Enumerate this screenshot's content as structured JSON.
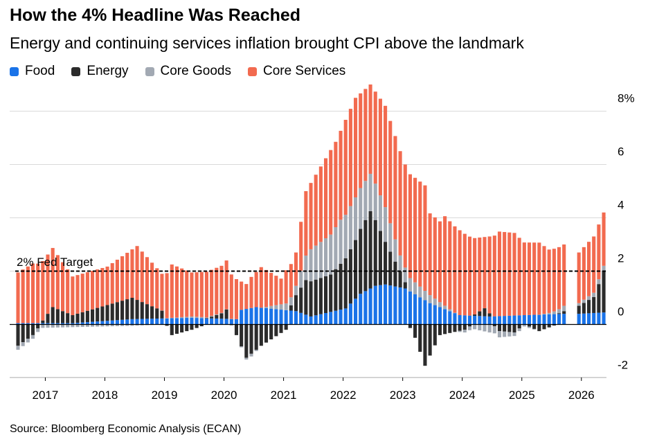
{
  "title": "How the 4% Headline Was Reached",
  "subtitle": "Energy and continuing services inflation brought CPI above the landmark",
  "source": "Source: Bloomberg Economic Analysis (ECAN)",
  "legend": [
    {
      "name": "Food",
      "color": "#1a73e8"
    },
    {
      "name": "Energy",
      "color": "#2b2b2b"
    },
    {
      "name": "Core Goods",
      "color": "#a2a9b3"
    },
    {
      "name": "Core Services",
      "color": "#f26a4f"
    }
  ],
  "chart_data": {
    "type": "bar",
    "stacked": true,
    "title": "How the 4% Headline Was Reached",
    "subtitle": "Energy and continuing services inflation brought CPI above the landmark",
    "ylim": [
      -2,
      8
    ],
    "y_ticks": [
      -2,
      0,
      2,
      4,
      6,
      8
    ],
    "y_tick_labels": [
      "-2",
      "0",
      "2",
      "4",
      "6",
      "8%"
    ],
    "x_tick_labels": [
      "2017",
      "2018",
      "2019",
      "2020",
      "2021",
      "2022",
      "2023",
      "2024",
      "2025",
      "2026"
    ],
    "x_start": "2016-07",
    "x_end": "2026-05",
    "gaps": [
      "2025-10",
      "2025-11"
    ],
    "legend_position": "top-left",
    "grid": true,
    "reference_line": {
      "value": 2,
      "label": "2% Fed Target",
      "style": "dashed"
    },
    "annotation": "2% Fed Target",
    "anchors": {
      "food": [
        [
          "2016-07",
          0.05
        ],
        [
          "2017-06",
          0.05
        ],
        [
          "2018-06",
          0.2
        ],
        [
          "2019-06",
          0.25
        ],
        [
          "2020-03",
          0.2
        ],
        [
          "2020-04",
          0.55
        ],
        [
          "2020-07",
          0.65
        ],
        [
          "2021-03",
          0.5
        ],
        [
          "2021-06",
          0.3
        ],
        [
          "2022-01",
          0.6
        ],
        [
          "2022-04",
          1.15
        ],
        [
          "2022-07",
          1.45
        ],
        [
          "2022-09",
          1.5
        ],
        [
          "2023-01",
          1.35
        ],
        [
          "2023-06",
          0.8
        ],
        [
          "2023-12",
          0.35
        ],
        [
          "2024-06",
          0.3
        ],
        [
          "2025-01",
          0.35
        ],
        [
          "2025-09",
          0.4
        ],
        [
          "2025-12",
          0.4
        ],
        [
          "2026-05",
          0.45
        ]
      ],
      "energy": [
        [
          "2016-07",
          -0.8
        ],
        [
          "2016-10",
          -0.4
        ],
        [
          "2017-02",
          0.6
        ],
        [
          "2017-06",
          0.3
        ],
        [
          "2018-06",
          0.8
        ],
        [
          "2018-12",
          0.3
        ],
        [
          "2019-02",
          -0.4
        ],
        [
          "2019-06",
          -0.2
        ],
        [
          "2019-12",
          0.2
        ],
        [
          "2020-01",
          0.35
        ],
        [
          "2020-03",
          -0.4
        ],
        [
          "2020-05",
          -1.25
        ],
        [
          "2020-08",
          -0.8
        ],
        [
          "2021-01",
          -0.2
        ],
        [
          "2021-03",
          0.6
        ],
        [
          "2021-05",
          1.3
        ],
        [
          "2021-10",
          1.4
        ],
        [
          "2022-03",
          2.2
        ],
        [
          "2022-06",
          2.9
        ],
        [
          "2022-09",
          1.6
        ],
        [
          "2022-12",
          0.6
        ],
        [
          "2023-03",
          -0.5
        ],
        [
          "2023-05",
          -1.55
        ],
        [
          "2023-08",
          -0.4
        ],
        [
          "2024-01",
          -0.2
        ],
        [
          "2024-05",
          0.3
        ],
        [
          "2024-08",
          -0.25
        ],
        [
          "2024-11",
          -0.3
        ],
        [
          "2025-01",
          0.0
        ],
        [
          "2025-04",
          -0.25
        ],
        [
          "2025-09",
          0.1
        ],
        [
          "2025-12",
          0.3
        ],
        [
          "2026-03",
          0.6
        ],
        [
          "2026-05",
          1.55
        ]
      ],
      "goods": [
        [
          "2016-07",
          -0.15
        ],
        [
          "2017-06",
          -0.1
        ],
        [
          "2018-06",
          -0.05
        ],
        [
          "2019-06",
          0.05
        ],
        [
          "2020-03",
          0.0
        ],
        [
          "2020-06",
          -0.1
        ],
        [
          "2020-12",
          0.2
        ],
        [
          "2021-03",
          0.35
        ],
        [
          "2021-06",
          1.2
        ],
        [
          "2021-12",
          1.65
        ],
        [
          "2022-03",
          1.6
        ],
        [
          "2022-06",
          1.4
        ],
        [
          "2022-09",
          1.3
        ],
        [
          "2022-12",
          0.6
        ],
        [
          "2023-06",
          0.3
        ],
        [
          "2024-01",
          -0.1
        ],
        [
          "2024-06",
          -0.3
        ],
        [
          "2024-12",
          -0.1
        ],
        [
          "2025-06",
          0.05
        ],
        [
          "2025-09",
          0.2
        ],
        [
          "2025-12",
          0.1
        ],
        [
          "2026-05",
          0.2
        ]
      ],
      "total": [
        [
          "2016-07",
          1.0
        ],
        [
          "2017-02",
          2.75
        ],
        [
          "2017-06",
          1.7
        ],
        [
          "2018-01",
          2.1
        ],
        [
          "2018-07",
          2.9
        ],
        [
          "2018-12",
          1.9
        ],
        [
          "2019-06",
          1.75
        ],
        [
          "2019-12",
          2.2
        ],
        [
          "2020-01",
          2.4
        ],
        [
          "2020-05",
          0.2
        ],
        [
          "2020-08",
          1.35
        ],
        [
          "2020-12",
          1.4
        ],
        [
          "2021-03",
          2.7
        ],
        [
          "2021-05",
          5.0
        ],
        [
          "2021-11",
          6.85
        ],
        [
          "2022-03",
          8.5
        ],
        [
          "2022-06",
          9.0
        ],
        [
          "2022-09",
          8.2
        ],
        [
          "2022-12",
          6.5
        ],
        [
          "2023-03",
          5.0
        ],
        [
          "2023-06",
          3.0
        ],
        [
          "2023-09",
          3.7
        ],
        [
          "2024-01",
          3.1
        ],
        [
          "2024-06",
          3.0
        ],
        [
          "2025-01",
          3.0
        ],
        [
          "2025-06",
          2.7
        ],
        [
          "2025-09",
          3.0
        ],
        [
          "2025-12",
          2.7
        ],
        [
          "2026-03",
          3.3
        ],
        [
          "2026-05",
          4.2
        ]
      ]
    }
  }
}
